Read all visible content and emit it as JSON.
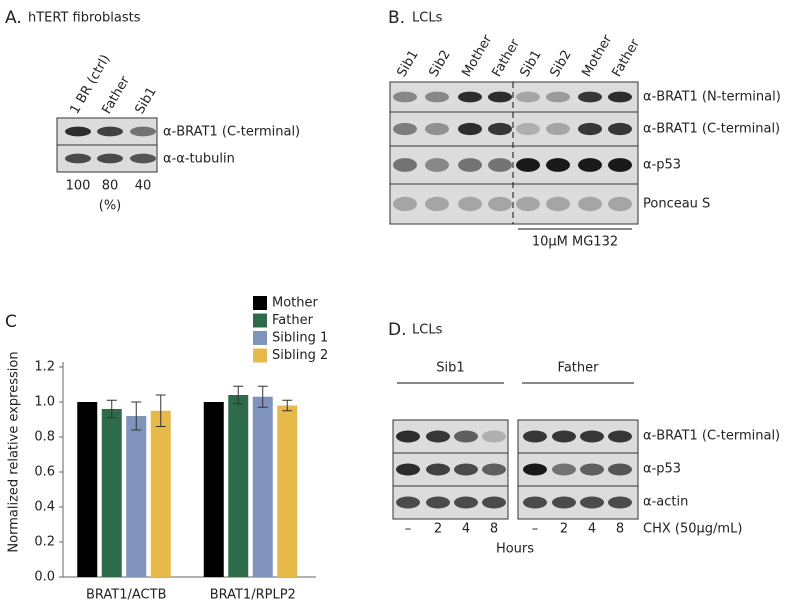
{
  "panel_a": {
    "label": "A.",
    "title": "hTERT fibroblasts",
    "lanes": [
      "1 BR (ctrl)",
      "Father",
      "Sib1"
    ],
    "rows": [
      "α-BRAT1 (C-terminal)",
      "α-α-tubulin"
    ],
    "quantification": [
      100,
      80,
      40
    ],
    "unit": "(%)"
  },
  "panel_b": {
    "label": "B.",
    "title": "LCLs",
    "lanes": [
      "Sib1",
      "Sib2",
      "Mother",
      "Father",
      "Sib1",
      "Sib2",
      "Mother",
      "Father"
    ],
    "rows": [
      "α-BRAT1 (N-terminal)",
      "α-BRAT1 (C-terminal)",
      "α-p53",
      "Ponceau S"
    ],
    "treatment": "10μM MG132"
  },
  "chart_data": {
    "type": "bar",
    "panel_label": "C",
    "y_label": "Normalized relative expression",
    "categories": [
      "BRAT1/ACTB",
      "BRAT1/RPLP2"
    ],
    "series": [
      {
        "name": "Mother",
        "color": "#000000",
        "values": [
          1.0,
          1.0
        ],
        "errors": [
          null,
          null
        ]
      },
      {
        "name": "Father",
        "color": "#2e6b4a",
        "values": [
          0.96,
          1.04
        ],
        "errors": [
          0.05,
          0.05
        ]
      },
      {
        "name": "Sibling 1",
        "color": "#7f93bd",
        "values": [
          0.92,
          1.03
        ],
        "errors": [
          0.08,
          0.06
        ]
      },
      {
        "name": "Sibling 2",
        "color": "#e6b94a",
        "values": [
          0.95,
          0.98
        ],
        "errors": [
          0.09,
          0.03
        ]
      }
    ],
    "ylim": [
      0,
      1.2
    ],
    "yticks": [
      {
        "value": 0,
        "label": "0.0"
      },
      0.2,
      0.4,
      0.6,
      0.8,
      {
        "value": 1,
        "label": "1.0"
      },
      1.2
    ]
  },
  "panel_d": {
    "label": "D.",
    "title": "LCLs",
    "groups": [
      "Sib1",
      "Father"
    ],
    "lanes": [
      "–",
      "2",
      "4",
      "8",
      "–",
      "2",
      "4",
      "8"
    ],
    "rows": [
      "α-BRAT1 (C-terminal)",
      "α-p53",
      "α-actin"
    ],
    "treatment": "CHX (50μg/mL)",
    "x_label": "Hours"
  }
}
